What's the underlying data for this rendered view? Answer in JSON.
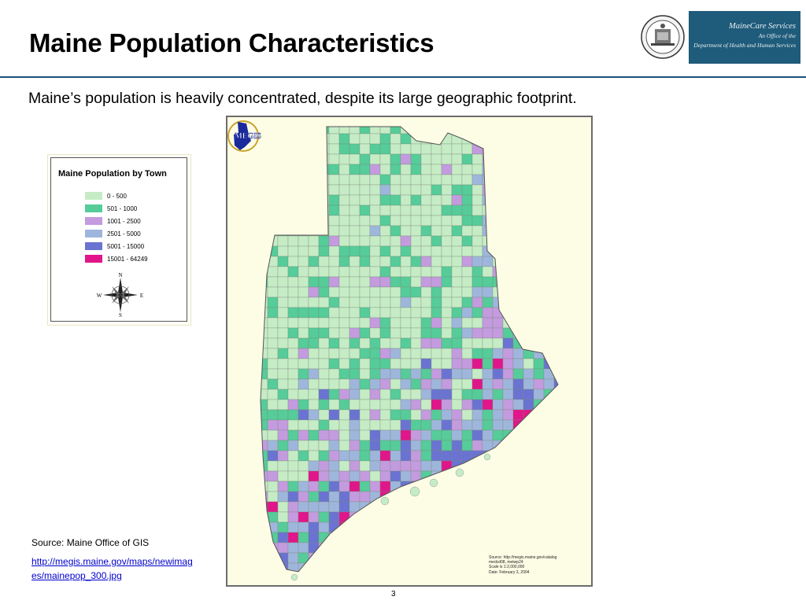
{
  "header": {
    "title": "Maine Population Characteristics",
    "logo": {
      "name": "MaineCare Services",
      "subtitle_line1": "An Office of the",
      "subtitle_line2": "Department of Health and Human Services",
      "background": "#1f5b7a"
    },
    "rule_color": "#1f4e79"
  },
  "subtitle": "Maine’s population is heavily concentrated, despite its large geographic footprint.",
  "legend": {
    "title": "Maine Population by Town",
    "items": [
      {
        "label": "0 - 500",
        "color": "#c6ecc6"
      },
      {
        "label": "501 - 1000",
        "color": "#55cc99"
      },
      {
        "label": "1001 - 2500",
        "color": "#c49bdf"
      },
      {
        "label": "2501 - 5000",
        "color": "#9fb6dc"
      },
      {
        "label": "5001 - 15000",
        "color": "#6a73d2"
      },
      {
        "label": "15001 - 64249",
        "color": "#e0168a"
      }
    ],
    "compass": {
      "n": "N",
      "s": "S",
      "e": "E",
      "w": "W",
      "icon": "compass-rose-icon"
    }
  },
  "map": {
    "background": "#fdfde6",
    "megis_logo_text": "MEGIS",
    "source_lines": [
      "Source: http://megis.maine.gov/catalog",
      "medcd08, metwp24",
      "Scale is 1:2,000,000",
      "Date: February 3, 2004"
    ]
  },
  "source": {
    "label": "Source:  Maine Office of GIS",
    "url": "http://megis.maine.gov/maps/newimages/mainepop_300.jpg"
  },
  "page_number": "3"
}
